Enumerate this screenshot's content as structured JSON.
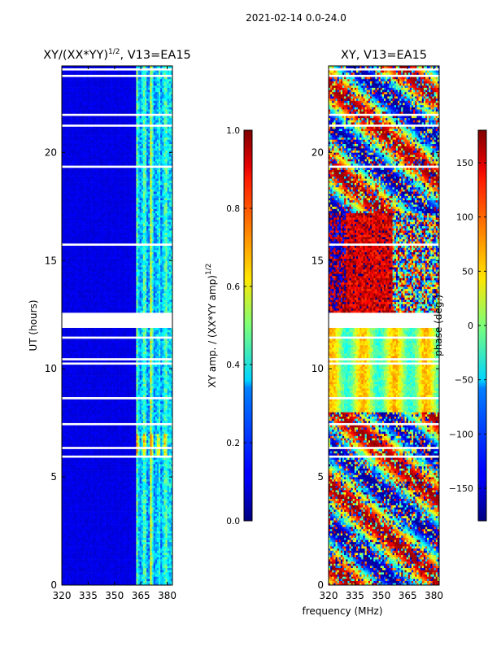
{
  "figure": {
    "suptitle": "2021-02-14 0.0-24.0",
    "xlabel_shared": "frequency (MHz)"
  },
  "chart_data": [
    {
      "type": "heatmap",
      "title_main": "XY/(XX*YY)",
      "title_sup": "1/2",
      "title_rest": ", V13=EA15",
      "xlabel": "",
      "ylabel": "UT (hours)",
      "xlim": [
        320,
        383
      ],
      "ylim": [
        0,
        24
      ],
      "xticks": [
        "320",
        "335",
        "350",
        "365",
        "380"
      ],
      "xtick_values": [
        320,
        335,
        350,
        365,
        380
      ],
      "yticks": [
        "0",
        "5",
        "10",
        "15",
        "20"
      ],
      "ytick_values": [
        0,
        5,
        10,
        15,
        20
      ],
      "colormap": "jet",
      "colorbar": {
        "label_main": "XY amp. / (XX*YY amp)",
        "label_sup": "1/2",
        "range": [
          0.0,
          1.0
        ],
        "ticks": [
          "0.0",
          "0.2",
          "0.4",
          "0.6",
          "0.8",
          "1.0"
        ],
        "tick_values": [
          0.0,
          0.2,
          0.4,
          0.6,
          0.8,
          1.0
        ]
      },
      "dominant_value_below_362MHz": 0.05,
      "active_band_MHz": [
        362,
        383
      ],
      "active_band_values_range": [
        0.1,
        0.7
      ],
      "missing_time_ranges_h": [
        [
          11.9,
          12.6
        ]
      ]
    },
    {
      "type": "heatmap",
      "title_main": "XY",
      "title_sup": "",
      "title_rest": ", V13=EA15",
      "xlabel": "frequency (MHz)",
      "ylabel": "",
      "xlim": [
        320,
        383
      ],
      "ylim": [
        0,
        24
      ],
      "xticks": [
        "320",
        "335",
        "350",
        "365",
        "380"
      ],
      "xtick_values": [
        320,
        335,
        350,
        365,
        380
      ],
      "yticks": [
        "0",
        "5",
        "10",
        "15",
        "20"
      ],
      "ytick_values": [
        0,
        5,
        10,
        15,
        20
      ],
      "colormap": "jet",
      "colorbar": {
        "label_main": "phase (deg.)",
        "label_sup": "",
        "range": [
          -180,
          180
        ],
        "ticks": [
          "−150",
          "−100",
          "−50",
          "0",
          "50",
          "100",
          "150"
        ],
        "tick_values": [
          -150,
          -100,
          -50,
          0,
          50,
          100,
          150
        ]
      },
      "values_range_deg": [
        -180,
        180
      ],
      "segments_h": [
        {
          "from": 0.0,
          "to": 7.8,
          "character": "noisy wrapped phase, dominantly -180..180 red/blue"
        },
        {
          "from": 8.0,
          "to": 11.9,
          "character": "stable phase near -30..60 deg, cyan/yellow"
        },
        {
          "from": 12.6,
          "to": 17.2,
          "character": "phase near 150..180 deg below 356 MHz, mixed above"
        },
        {
          "from": 17.2,
          "to": 24.0,
          "character": "noisy wrapped phase"
        }
      ],
      "missing_time_ranges_h": [
        [
          11.9,
          12.6
        ]
      ]
    }
  ]
}
